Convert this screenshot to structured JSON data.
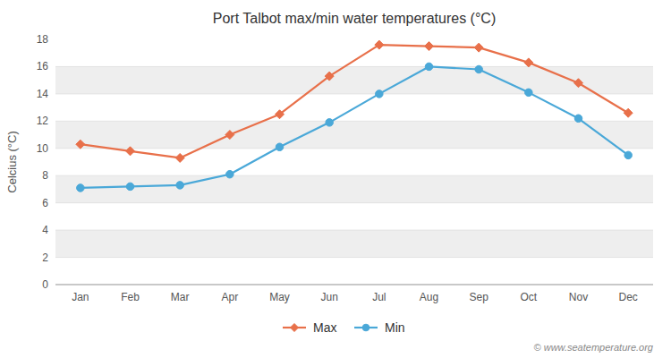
{
  "chart_data": {
    "type": "line",
    "title": "Port Talbot max/min water temperatures (°C)",
    "ylabel": "Celcius (°C)",
    "categories": [
      "Jan",
      "Feb",
      "Mar",
      "Apr",
      "May",
      "Jun",
      "Jul",
      "Aug",
      "Sep",
      "Oct",
      "Nov",
      "Dec"
    ],
    "series": [
      {
        "name": "Max",
        "color": "#e8704a",
        "marker": "diamond",
        "values": [
          10.3,
          9.8,
          9.3,
          11.0,
          12.5,
          15.3,
          17.6,
          17.5,
          17.4,
          16.3,
          14.8,
          12.6
        ]
      },
      {
        "name": "Min",
        "color": "#4aa8d8",
        "marker": "circle",
        "values": [
          7.1,
          7.2,
          7.3,
          8.1,
          10.1,
          11.9,
          14.0,
          16.0,
          15.8,
          14.1,
          12.2,
          9.5
        ]
      }
    ],
    "ylim": [
      0,
      18
    ],
    "yticks": [
      0,
      2,
      4,
      6,
      8,
      10,
      12,
      14,
      16,
      18
    ],
    "grid": true,
    "legend": "bottom",
    "annotations": [
      "© www.seatemperature.org"
    ]
  }
}
